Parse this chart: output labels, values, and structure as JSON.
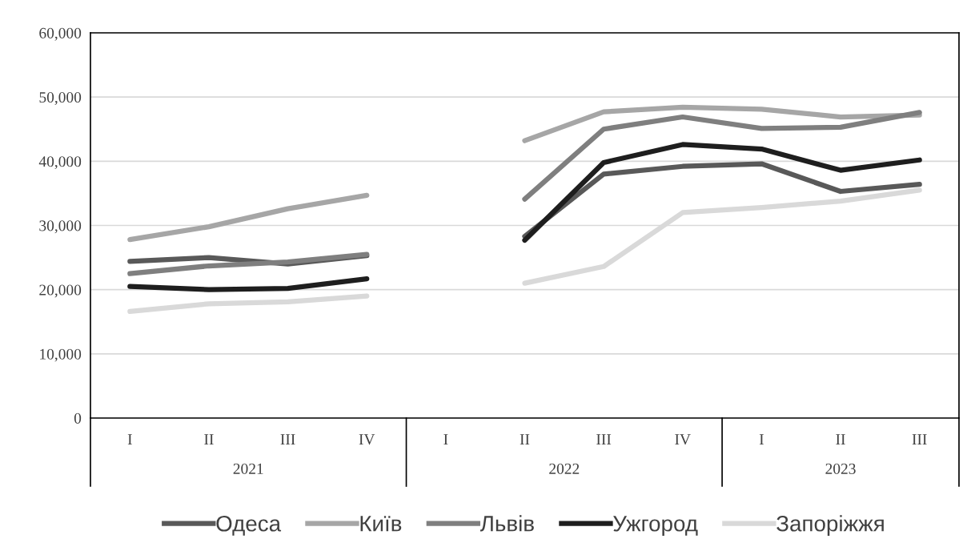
{
  "chart_data": {
    "type": "line",
    "categories": [
      "I",
      "II",
      "III",
      "IV",
      "I",
      "II",
      "III",
      "IV",
      "I",
      "II",
      "III"
    ],
    "annotations": [
      "2021",
      "2022",
      "2023"
    ],
    "series": [
      {
        "name": "Одеса",
        "color": "#595959",
        "values": [
          24400,
          25000,
          24000,
          25300,
          null,
          28300,
          38000,
          39200,
          39600,
          35300,
          36400
        ]
      },
      {
        "name": "Київ",
        "color": "#a6a6a6",
        "values": [
          27800,
          29800,
          32600,
          34700,
          null,
          43200,
          47700,
          48400,
          48100,
          46900,
          47200
        ]
      },
      {
        "name": "Львів",
        "color": "#7f7f7f",
        "values": [
          22500,
          23700,
          24300,
          25500,
          null,
          34100,
          45000,
          46900,
          45100,
          45300,
          47600
        ]
      },
      {
        "name": "Ужгород",
        "color": "#1e1e1e",
        "values": [
          20500,
          20000,
          20200,
          21700,
          null,
          27700,
          39800,
          42600,
          41900,
          38600,
          40200
        ]
      },
      {
        "name": "Запоріжжя",
        "color": "#d9d9d9",
        "values": [
          16600,
          17800,
          18100,
          19000,
          null,
          21000,
          23600,
          32000,
          32800,
          33800,
          35500
        ]
      }
    ],
    "ylim": [
      0,
      60000
    ],
    "yticks": [
      0,
      {
        "value": 10000,
        "label": "10,000"
      },
      {
        "value": 20000,
        "label": "20,000"
      },
      {
        "value": 30000,
        "label": "30,000"
      },
      {
        "value": 40000,
        "label": "40,000"
      },
      {
        "value": 50000,
        "label": "50,000"
      },
      {
        "value": 60000,
        "label": "60,000"
      }
    ],
    "grid": "y",
    "legend": "bottom",
    "marker": "none",
    "line_style": "solid"
  }
}
